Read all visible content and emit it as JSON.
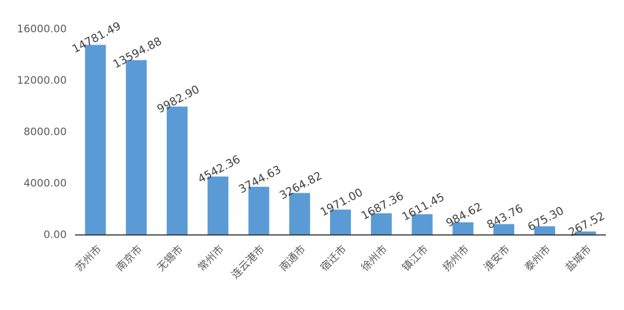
{
  "chart_data": {
    "type": "bar",
    "categories": [
      "苏州市",
      "南京市",
      "无锡市",
      "常州市",
      "连云港市",
      "南通市",
      "宿迁市",
      "徐州市",
      "镇江市",
      "扬州市",
      "淮安市",
      "泰州市",
      "盐城市"
    ],
    "values": [
      14781.49,
      13594.88,
      9982.9,
      4542.36,
      3744.63,
      3264.82,
      1971.0,
      1687.36,
      1611.45,
      984.62,
      843.76,
      675.3,
      267.52
    ],
    "value_labels": [
      "14781.49",
      "13594.88",
      "9982.90",
      "4542.36",
      "3744.63",
      "3264.82",
      "1971.00",
      "1687.36",
      "1611.45",
      "984.62",
      "843.76",
      "675.30",
      "267.52"
    ],
    "color": "#5b9bd5",
    "ylim": [
      0,
      16000
    ],
    "yticks": [
      {
        "value": 0,
        "label": "0.00"
      },
      {
        "value": 4000,
        "label": "4000.00"
      },
      {
        "value": 8000,
        "label": "8000.00"
      },
      {
        "value": 12000,
        "label": "12000.00"
      },
      {
        "value": 16000,
        "label": "16000.00"
      }
    ],
    "grid": false
  }
}
